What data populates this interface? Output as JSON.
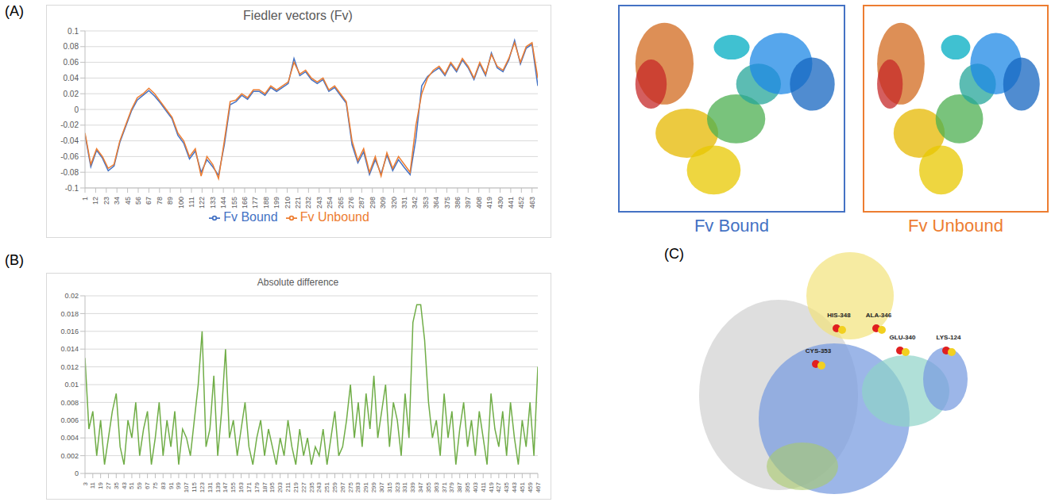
{
  "chart_data": [
    {
      "type": "line",
      "title": "Fiedler vectors (Fv)",
      "x": [
        1,
        7,
        13,
        19,
        25,
        31,
        37,
        43,
        49,
        55,
        61,
        67,
        73,
        79,
        85,
        91,
        97,
        103,
        109,
        115,
        121,
        127,
        133,
        139,
        145,
        151,
        157,
        163,
        169,
        175,
        181,
        187,
        193,
        199,
        205,
        211,
        217,
        223,
        229,
        235,
        241,
        247,
        253,
        259,
        265,
        271,
        277,
        283,
        289,
        295,
        301,
        307,
        313,
        319,
        325,
        331,
        337,
        343,
        349,
        355,
        361,
        367,
        373,
        379,
        385,
        391,
        397,
        403,
        409,
        415,
        421,
        427,
        433,
        439,
        445,
        451,
        457,
        463,
        469
      ],
      "series": [
        {
          "name": "Fv Bound",
          "color": "#4472c4",
          "values": [
            -0.032,
            -0.073,
            -0.052,
            -0.062,
            -0.078,
            -0.072,
            -0.042,
            -0.022,
            -0.002,
            0.012,
            0.018,
            0.024,
            0.017,
            0.008,
            -0.002,
            -0.012,
            -0.033,
            -0.043,
            -0.063,
            -0.053,
            -0.08,
            -0.064,
            -0.073,
            -0.084,
            -0.045,
            0.006,
            0.01,
            0.018,
            0.013,
            0.023,
            0.023,
            0.018,
            0.028,
            0.023,
            0.028,
            0.033,
            0.065,
            0.043,
            0.048,
            0.038,
            0.033,
            0.038,
            0.023,
            0.028,
            0.018,
            0.008,
            -0.045,
            -0.068,
            -0.054,
            -0.083,
            -0.064,
            -0.082,
            -0.058,
            -0.078,
            -0.064,
            -0.074,
            -0.083,
            -0.037,
            0.03,
            0.042,
            0.048,
            0.053,
            0.043,
            0.058,
            0.048,
            0.063,
            0.053,
            0.038,
            0.058,
            0.043,
            0.072,
            0.053,
            0.048,
            0.063,
            0.088,
            0.058,
            0.078,
            0.083,
            0.03
          ]
        },
        {
          "name": "Fv Unbound",
          "color": "#ed7d31",
          "values": [
            -0.03,
            -0.07,
            -0.05,
            -0.06,
            -0.075,
            -0.07,
            -0.04,
            -0.02,
            0,
            0.015,
            0.02,
            0.027,
            0.02,
            0.01,
            0,
            -0.01,
            -0.03,
            -0.04,
            -0.06,
            -0.05,
            -0.085,
            -0.06,
            -0.07,
            -0.088,
            -0.04,
            0.01,
            0.012,
            0.02,
            0.015,
            0.025,
            0.025,
            0.02,
            0.03,
            0.025,
            0.03,
            0.035,
            0.06,
            0.045,
            0.05,
            0.04,
            0.035,
            0.04,
            0.025,
            0.03,
            0.02,
            0.01,
            -0.04,
            -0.065,
            -0.05,
            -0.08,
            -0.06,
            -0.085,
            -0.055,
            -0.075,
            -0.06,
            -0.07,
            -0.08,
            -0.02,
            0.02,
            0.04,
            0.05,
            0.055,
            0.045,
            0.06,
            0.05,
            0.065,
            0.055,
            0.04,
            0.06,
            0.045,
            0.07,
            0.055,
            0.05,
            0.065,
            0.085,
            0.06,
            0.08,
            0.085,
            0.04
          ]
        }
      ],
      "xlim": [
        1,
        469
      ],
      "xticks": [
        1,
        12,
        23,
        34,
        45,
        56,
        67,
        78,
        89,
        100,
        111,
        122,
        133,
        144,
        155,
        166,
        177,
        188,
        199,
        210,
        221,
        232,
        243,
        254,
        265,
        276,
        287,
        298,
        309,
        320,
        331,
        342,
        353,
        364,
        375,
        386,
        397,
        408,
        419,
        430,
        441,
        452,
        463
      ],
      "ylim": [
        -0.1,
        0.1
      ],
      "yticks": [
        -0.1,
        -0.08,
        -0.06,
        -0.04,
        -0.02,
        0,
        0.02,
        0.04,
        0.06,
        0.08,
        0.1
      ],
      "grid": true,
      "legend": "bottom"
    },
    {
      "type": "line",
      "title": "Absolute difference",
      "color": "#70ad47",
      "x": [
        3,
        7,
        11,
        15,
        19,
        23,
        27,
        31,
        35,
        39,
        43,
        47,
        51,
        55,
        59,
        63,
        67,
        71,
        75,
        79,
        83,
        87,
        91,
        95,
        99,
        103,
        107,
        111,
        115,
        119,
        123,
        127,
        131,
        135,
        139,
        143,
        147,
        151,
        155,
        159,
        163,
        167,
        171,
        175,
        179,
        183,
        187,
        191,
        195,
        199,
        203,
        207,
        211,
        215,
        219,
        223,
        227,
        231,
        235,
        239,
        243,
        247,
        251,
        255,
        259,
        263,
        267,
        271,
        275,
        279,
        283,
        287,
        291,
        295,
        299,
        303,
        307,
        311,
        315,
        319,
        323,
        327,
        331,
        335,
        339,
        343,
        347,
        351,
        355,
        359,
        363,
        367,
        371,
        375,
        379,
        383,
        387,
        391,
        395,
        399,
        403,
        407,
        411,
        415,
        419,
        423,
        427,
        431,
        435,
        439,
        443,
        447,
        451,
        455,
        459,
        463,
        467
      ],
      "values": [
        0.013,
        0.005,
        0.007,
        0.002,
        0.006,
        0.001,
        0.004,
        0.007,
        0.009,
        0.003,
        0.001,
        0.006,
        0.004,
        0.008,
        0.002,
        0.005,
        0.007,
        0.001,
        0.004,
        0.008,
        0.002,
        0.006,
        0.003,
        0.007,
        0.001,
        0.005,
        0.004,
        0.002,
        0.006,
        0.01,
        0.016,
        0.003,
        0.005,
        0.011,
        0.002,
        0.007,
        0.014,
        0.004,
        0.006,
        0.002,
        0.005,
        0.008,
        0.003,
        0.001,
        0.004,
        0.006,
        0.002,
        0.005,
        0.003,
        0.001,
        0.004,
        0.002,
        0.006,
        0.003,
        0.001,
        0.005,
        0.002,
        0.004,
        0.001,
        0.003,
        0.002,
        0.005,
        0.001,
        0.004,
        0.007,
        0.002,
        0.003,
        0.006,
        0.01,
        0.004,
        0.008,
        0.003,
        0.009,
        0.005,
        0.011,
        0.004,
        0.007,
        0.01,
        0.003,
        0.008,
        0.006,
        0.002,
        0.009,
        0.004,
        0.017,
        0.019,
        0.019,
        0.015,
        0.008,
        0.004,
        0.006,
        0.002,
        0.009,
        0.004,
        0.007,
        0.001,
        0.005,
        0.008,
        0.003,
        0.006,
        0.002,
        0.007,
        0.004,
        0.001,
        0.009,
        0.005,
        0.003,
        0.007,
        0.002,
        0.008,
        0.004,
        0.001,
        0.006,
        0.003,
        0.008,
        0.002,
        0.012
      ],
      "xlim": [
        3,
        467
      ],
      "xticks": [
        3,
        11,
        19,
        27,
        35,
        43,
        51,
        59,
        67,
        75,
        83,
        91,
        99,
        107,
        115,
        123,
        131,
        139,
        147,
        155,
        163,
        171,
        179,
        187,
        195,
        203,
        211,
        219,
        227,
        235,
        243,
        251,
        259,
        267,
        275,
        283,
        291,
        299,
        307,
        315,
        323,
        331,
        339,
        347,
        355,
        363,
        371,
        379,
        387,
        395,
        403,
        411,
        419,
        427,
        435,
        443,
        451,
        459,
        467
      ],
      "ylim": [
        0,
        0.02
      ],
      "yticks": [
        0,
        0.002,
        0.004,
        0.006,
        0.008,
        0.01,
        0.012,
        0.014,
        0.016,
        0.018,
        0.02
      ],
      "grid": true
    }
  ],
  "panel_labels": [
    "(A)",
    "(B)",
    "(C)"
  ],
  "structure_captions": [
    {
      "text": "Fv Bound",
      "color": "#4472c4"
    },
    {
      "text": "Fv Unbound",
      "color": "#ed7d31"
    }
  ],
  "residues": [
    "HIS-348",
    "ALA-346",
    "GLU-340",
    "LYS-124",
    "CYS-353"
  ]
}
